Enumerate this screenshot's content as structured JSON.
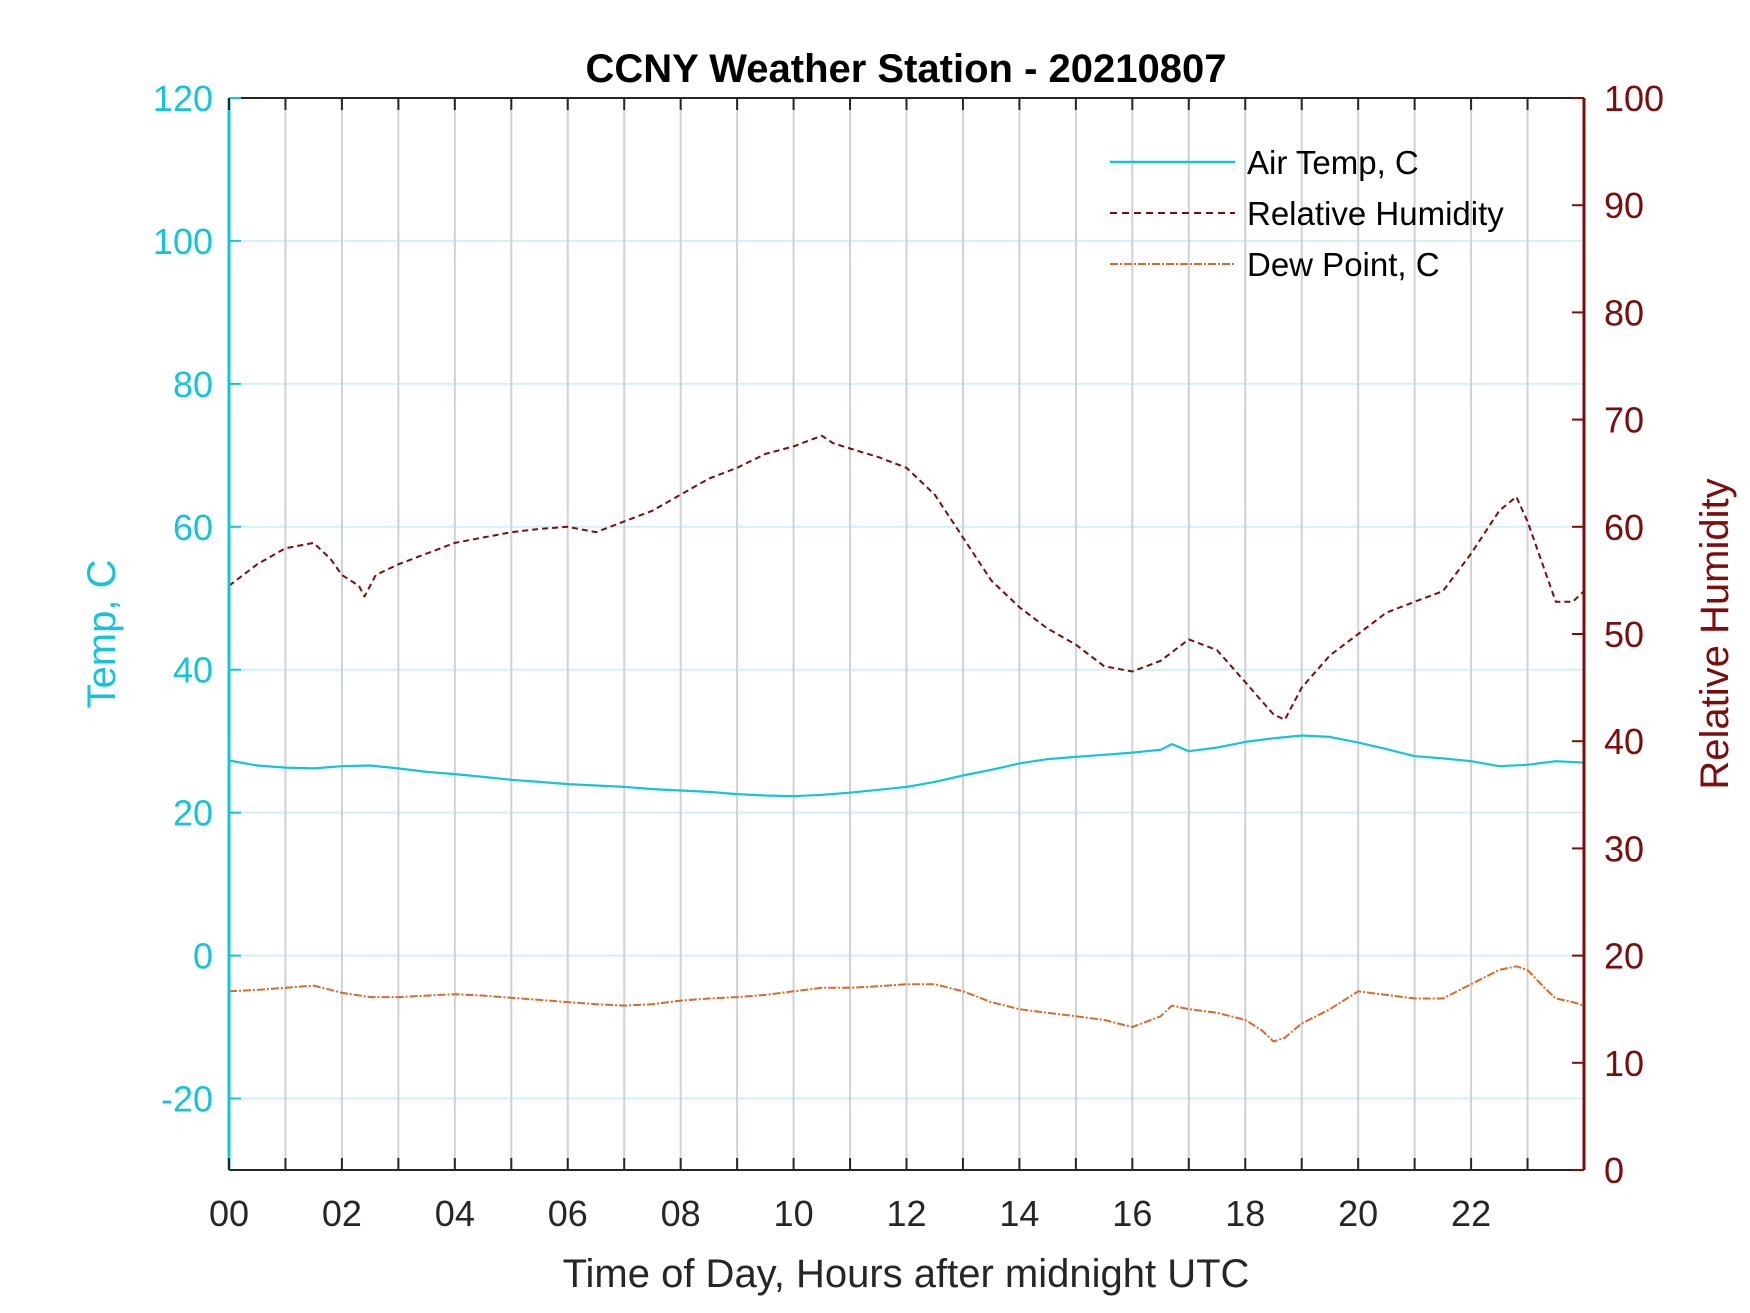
{
  "chart_data": {
    "type": "line",
    "title": "CCNY Weather Station - 20210807",
    "xlabel": "Time of Day, Hours after midnight UTC",
    "ylabel_left": "Temp, C",
    "ylabel_right": "Relative Humidity",
    "xlim": [
      0,
      24
    ],
    "ylim_left": [
      -30,
      120
    ],
    "ylim_right": [
      0,
      100
    ],
    "x_ticks": [
      0,
      2,
      4,
      6,
      8,
      10,
      12,
      14,
      16,
      18,
      20,
      22
    ],
    "x_tick_labels": [
      "00",
      "02",
      "04",
      "06",
      "08",
      "10",
      "12",
      "14",
      "16",
      "18",
      "20",
      "22"
    ],
    "x_minor_ticks": [
      1,
      3,
      5,
      7,
      9,
      11,
      13,
      15,
      17,
      19,
      21,
      23
    ],
    "y_left_ticks": [
      -20,
      0,
      20,
      40,
      60,
      80,
      100,
      120
    ],
    "y_left_tick_labels": [
      "-20",
      "0",
      "20",
      "40",
      "60",
      "80",
      "100",
      "120"
    ],
    "y_right_ticks": [
      0,
      10,
      20,
      30,
      40,
      50,
      60,
      70,
      80,
      90,
      100
    ],
    "y_right_tick_labels": [
      "0",
      "10",
      "20",
      "30",
      "40",
      "50",
      "60",
      "70",
      "80",
      "90",
      "100"
    ],
    "grid": true,
    "legend_position": "top-right",
    "colors": {
      "air_temp": "#16c4d8",
      "relative_humidity": "#7b0d0d",
      "dew_point": "#d86a2a",
      "left_axis": "#16c4d8",
      "right_axis": "#7b0d0d",
      "grid_x": "#cdd2d6",
      "grid_y": "#d4f0f4"
    },
    "series": [
      {
        "name": "Air Temp, C",
        "axis": "left",
        "style": "solid",
        "x": [
          0,
          0.5,
          1,
          1.5,
          2,
          2.5,
          3,
          3.5,
          4,
          4.5,
          5,
          5.5,
          6,
          6.5,
          7,
          7.5,
          8,
          8.5,
          9,
          9.5,
          10,
          10.5,
          11,
          11.5,
          12,
          12.5,
          13,
          13.5,
          14,
          14.5,
          15,
          15.5,
          16,
          16.5,
          16.7,
          17,
          17.5,
          18,
          18.5,
          19,
          19.5,
          20,
          20.5,
          21,
          21.5,
          22,
          22.5,
          23,
          23.5,
          24
        ],
        "y": [
          27.3,
          26.6,
          26.3,
          26.2,
          26.5,
          26.6,
          26.2,
          25.7,
          25.4,
          25.0,
          24.6,
          24.3,
          24.0,
          23.8,
          23.6,
          23.3,
          23.1,
          22.9,
          22.6,
          22.4,
          22.3,
          22.5,
          22.8,
          23.2,
          23.6,
          24.3,
          25.2,
          26.0,
          26.9,
          27.5,
          27.8,
          28.1,
          28.4,
          28.8,
          29.6,
          28.6,
          29.1,
          29.9,
          30.4,
          30.8,
          30.6,
          29.8,
          28.9,
          27.9,
          27.6,
          27.2,
          26.5,
          26.7,
          27.2,
          27.0
        ]
      },
      {
        "name": "Relative Humidity",
        "axis": "right",
        "style": "dashed",
        "x": [
          0,
          0.5,
          1,
          1.5,
          1.8,
          2,
          2.3,
          2.4,
          2.6,
          3,
          3.5,
          4,
          4.5,
          5,
          5.5,
          6,
          6.5,
          7,
          7.5,
          8,
          8.5,
          9,
          9.5,
          10,
          10.5,
          10.7,
          11,
          11.5,
          12,
          12.5,
          13,
          13.5,
          14,
          14.5,
          15,
          15.5,
          16,
          16.5,
          17,
          17.5,
          18,
          18.5,
          18.7,
          19,
          19.5,
          20,
          20.5,
          21,
          21.5,
          22,
          22.5,
          22.8,
          23,
          23.3,
          23.5,
          23.8,
          24
        ],
        "y": [
          54.5,
          56.5,
          58.0,
          58.5,
          57.0,
          55.5,
          54.5,
          53.5,
          55.5,
          56.5,
          57.5,
          58.5,
          59.0,
          59.5,
          59.8,
          60.0,
          59.5,
          60.5,
          61.5,
          63.0,
          64.5,
          65.5,
          66.8,
          67.5,
          68.5,
          67.8,
          67.3,
          66.5,
          65.5,
          63.0,
          59.0,
          55.0,
          52.5,
          50.5,
          49.0,
          47.0,
          46.5,
          47.5,
          49.5,
          48.5,
          45.5,
          42.5,
          42.0,
          45.0,
          48.0,
          50.0,
          52.0,
          53.0,
          54.0,
          57.5,
          61.5,
          62.8,
          60.5,
          56.0,
          53.0,
          53.0,
          54.0
        ]
      },
      {
        "name": "Dew Point, C",
        "axis": "left",
        "style": "dashdot",
        "x": [
          0,
          0.5,
          1,
          1.5,
          2,
          2.5,
          3,
          3.5,
          4,
          4.5,
          5,
          5.5,
          6,
          6.5,
          7,
          7.5,
          8,
          8.5,
          9,
          9.5,
          10,
          10.5,
          11,
          11.5,
          12,
          12.5,
          13,
          13.5,
          14,
          14.5,
          15,
          15.5,
          16,
          16.5,
          16.7,
          17,
          17.5,
          18,
          18.3,
          18.5,
          18.7,
          19,
          19.5,
          20,
          20.5,
          21,
          21.5,
          22,
          22.5,
          22.8,
          23,
          23.3,
          23.5,
          23.8,
          24
        ],
        "y": [
          -5.0,
          -4.8,
          -4.5,
          -4.2,
          -5.2,
          -5.8,
          -5.8,
          -5.6,
          -5.4,
          -5.6,
          -5.9,
          -6.2,
          -6.5,
          -6.8,
          -7.0,
          -6.8,
          -6.3,
          -6.0,
          -5.8,
          -5.5,
          -5.0,
          -4.5,
          -4.5,
          -4.3,
          -4.0,
          -4.0,
          -5.0,
          -6.5,
          -7.5,
          -8.0,
          -8.5,
          -9.0,
          -10.0,
          -8.5,
          -7.0,
          -7.5,
          -8.0,
          -9.0,
          -10.5,
          -12.0,
          -11.5,
          -9.5,
          -7.5,
          -5.0,
          -5.5,
          -6.0,
          -6.0,
          -4.0,
          -2.0,
          -1.5,
          -2.0,
          -4.5,
          -6.0,
          -6.5,
          -7.0
        ]
      }
    ]
  }
}
